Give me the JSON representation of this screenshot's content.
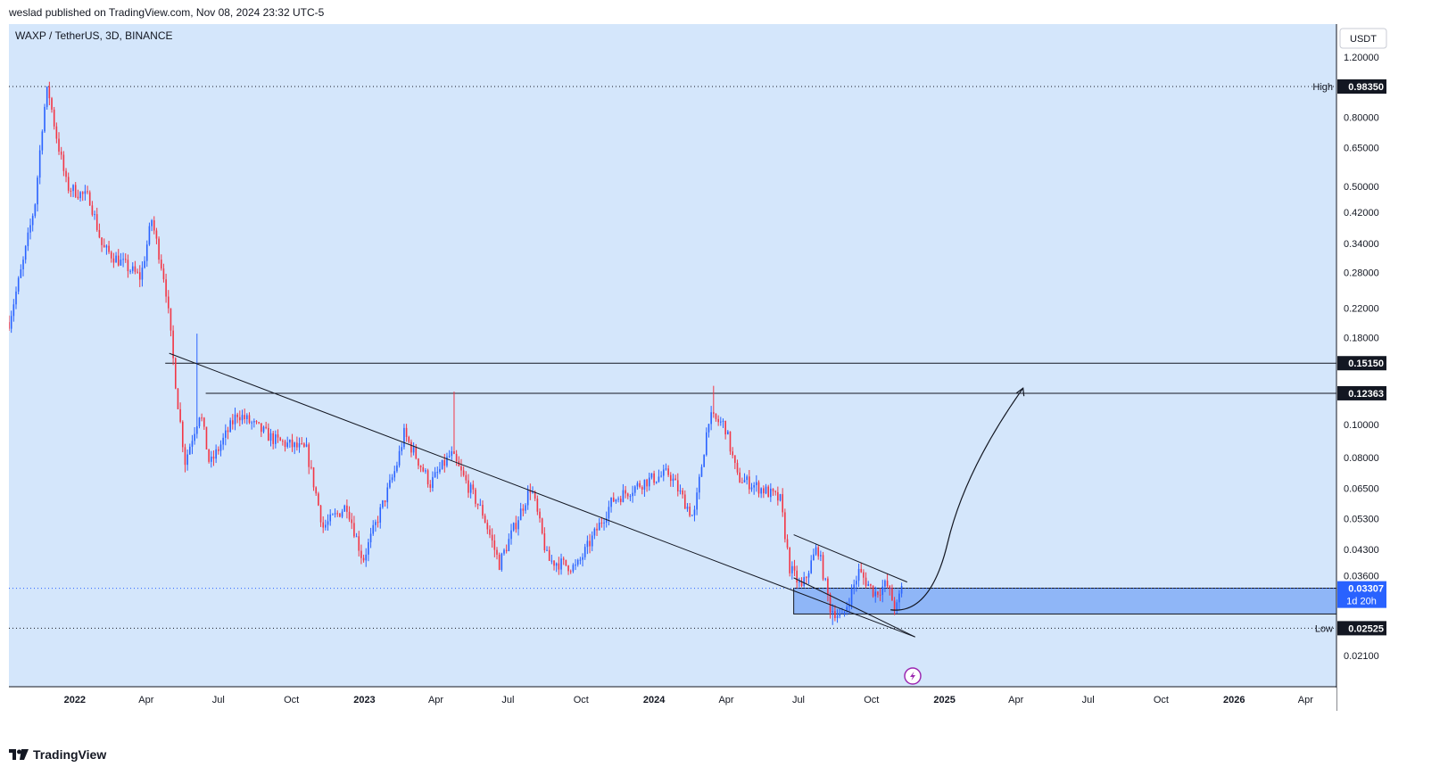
{
  "header": {
    "text": "weslad published on TradingView.com, Nov 08, 2024 23:32 UTC-5"
  },
  "footer": {
    "brand": "TradingView"
  },
  "colors": {
    "background": "#d4e6fb",
    "up": "#2962ff",
    "down": "#f23645",
    "zone": "#8fb6f7",
    "line": "#131722",
    "axis_text": "#131722",
    "price_label_bg": "#2962ff",
    "flash_icon": "#9c27b0"
  },
  "chart_data": {
    "type": "candlestick",
    "title": "WAXP / TetherUS, 3D, BINANCE",
    "currency": "USDT",
    "scale": "log",
    "x_range": [
      "2021-10-10",
      "2026-05-10"
    ],
    "y_range": [
      0.017,
      1.5
    ],
    "y_ticks": [
      1.2,
      0.8,
      0.65,
      0.5,
      0.42,
      0.34,
      0.28,
      0.22,
      0.18,
      0.1,
      0.08,
      0.065,
      0.053,
      0.043,
      0.036,
      0.021
    ],
    "y_tick_labels": [
      "1.20000",
      "0.80000",
      "0.65000",
      "0.50000",
      "0.42000",
      "0.34000",
      "0.28000",
      "0.22000",
      "0.18000",
      "0.10000",
      "0.08000",
      "0.06500",
      "0.05300",
      "0.04300",
      "0.03600",
      "0.02100"
    ],
    "x_ticks": [
      {
        "date": "2022-01-01",
        "label": "2022",
        "bold": true
      },
      {
        "date": "2022-04-01",
        "label": "Apr"
      },
      {
        "date": "2022-07-01",
        "label": "Jul"
      },
      {
        "date": "2022-10-01",
        "label": "Oct"
      },
      {
        "date": "2023-01-01",
        "label": "2023",
        "bold": true
      },
      {
        "date": "2023-04-01",
        "label": "Apr"
      },
      {
        "date": "2023-07-01",
        "label": "Jul"
      },
      {
        "date": "2023-10-01",
        "label": "Oct"
      },
      {
        "date": "2024-01-01",
        "label": "2024",
        "bold": true
      },
      {
        "date": "2024-04-01",
        "label": "Apr"
      },
      {
        "date": "2024-07-01",
        "label": "Jul"
      },
      {
        "date": "2024-10-01",
        "label": "Oct"
      },
      {
        "date": "2025-01-01",
        "label": "2025",
        "bold": true
      },
      {
        "date": "2025-04-01",
        "label": "Apr"
      },
      {
        "date": "2025-07-01",
        "label": "Jul"
      },
      {
        "date": "2025-10-01",
        "label": "Oct"
      },
      {
        "date": "2026-01-01",
        "label": "2026",
        "bold": true
      },
      {
        "date": "2026-04-01",
        "label": "Apr"
      }
    ],
    "price_path": [
      [
        "2021-10-10",
        0.2
      ],
      [
        "2021-10-28",
        0.3
      ],
      [
        "2021-11-12",
        0.45
      ],
      [
        "2021-11-22",
        0.8
      ],
      [
        "2021-11-28",
        0.98
      ],
      [
        "2021-12-08",
        0.72
      ],
      [
        "2021-12-22",
        0.5
      ],
      [
        "2022-01-20",
        0.46
      ],
      [
        "2022-02-05",
        0.33
      ],
      [
        "2022-02-28",
        0.3
      ],
      [
        "2022-03-25",
        0.27
      ],
      [
        "2022-04-08",
        0.4
      ],
      [
        "2022-04-25",
        0.26
      ],
      [
        "2022-05-10",
        0.12
      ],
      [
        "2022-05-20",
        0.078
      ],
      [
        "2022-06-08",
        0.11
      ],
      [
        "2022-06-20",
        0.076
      ],
      [
        "2022-07-25",
        0.108
      ],
      [
        "2022-09-10",
        0.09
      ],
      [
        "2022-10-20",
        0.084
      ],
      [
        "2022-11-10",
        0.05
      ],
      [
        "2022-12-10",
        0.058
      ],
      [
        "2022-12-30",
        0.04
      ],
      [
        "2023-02-10",
        0.075
      ],
      [
        "2023-02-20",
        0.094
      ],
      [
        "2023-03-25",
        0.067
      ],
      [
        "2023-04-20",
        0.082
      ],
      [
        "2023-05-30",
        0.055
      ],
      [
        "2023-06-20",
        0.039
      ],
      [
        "2023-07-30",
        0.066
      ],
      [
        "2023-08-20",
        0.04
      ],
      [
        "2023-09-25",
        0.038
      ],
      [
        "2023-11-10",
        0.06
      ],
      [
        "2023-12-20",
        0.068
      ],
      [
        "2024-01-20",
        0.072
      ],
      [
        "2024-02-20",
        0.053
      ],
      [
        "2024-03-10",
        0.105
      ],
      [
        "2024-03-30",
        0.1
      ],
      [
        "2024-04-15",
        0.07
      ],
      [
        "2024-05-20",
        0.064
      ],
      [
        "2024-06-08",
        0.06
      ],
      [
        "2024-06-20",
        0.038
      ],
      [
        "2024-07-05",
        0.033
      ],
      [
        "2024-07-25",
        0.044
      ],
      [
        "2024-08-10",
        0.029
      ],
      [
        "2024-08-25",
        0.027
      ],
      [
        "2024-09-15",
        0.037
      ],
      [
        "2024-10-05",
        0.032
      ],
      [
        "2024-10-20",
        0.034
      ],
      [
        "2024-11-01",
        0.0285
      ],
      [
        "2024-11-08",
        0.0331
      ]
    ],
    "spikes": [
      {
        "date": "2022-06-03",
        "high": 0.185
      },
      {
        "date": "2023-04-23",
        "high": 0.125
      },
      {
        "date": "2024-03-15",
        "high": 0.13
      },
      {
        "date": "2024-08-12",
        "low": 0.0258
      }
    ],
    "levels": [
      {
        "value": 0.9835,
        "label": "0.98350",
        "tag": "High",
        "style": "dotted"
      },
      {
        "value": 0.1515,
        "label": "0.15150",
        "style": "solid",
        "from": "2022-04-25"
      },
      {
        "value": 0.12363,
        "label": "0.12363",
        "style": "solid",
        "from": "2022-06-15"
      },
      {
        "value": 0.02525,
        "label": "0.02525",
        "tag": "Low",
        "style": "dotted"
      }
    ],
    "current": {
      "value": 0.03307,
      "label": "0.03307",
      "countdown": "1d 20h"
    },
    "zone": {
      "from": "2024-06-25",
      "to_edge": true,
      "top": 0.0331,
      "bottom": 0.0278
    },
    "trendlines": [
      {
        "from": [
          "2022-04-30",
          0.162
        ],
        "to": [
          "2024-11-25",
          0.0238
        ]
      },
      {
        "from": [
          "2024-06-25",
          0.0475
        ],
        "to": [
          "2024-11-15",
          0.0345
        ]
      },
      {
        "from": [
          "2024-06-25",
          0.0355
        ],
        "to": [
          "2024-11-25",
          0.0238
        ]
      }
    ],
    "projection": [
      [
        "2024-10-25",
        0.0286
      ],
      [
        "2025-01-05",
        0.045
      ],
      [
        "2025-04-10",
        0.128
      ]
    ]
  }
}
